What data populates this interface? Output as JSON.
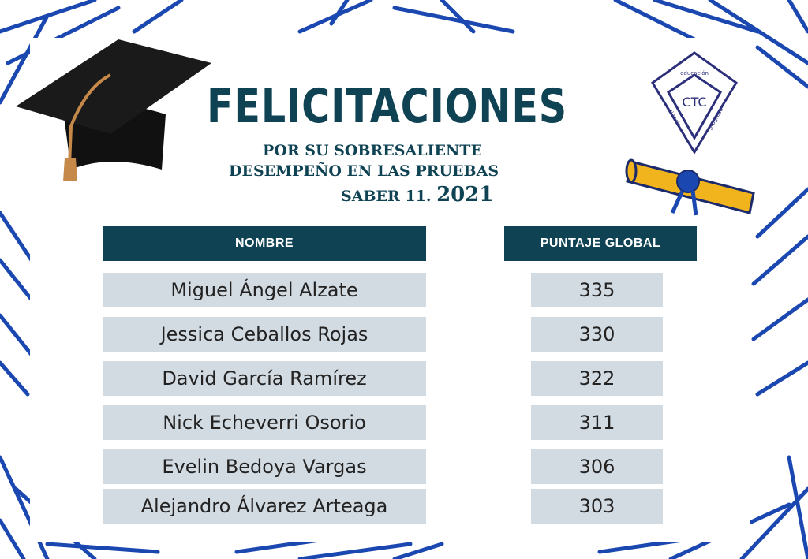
{
  "title": "FELICITACIONES",
  "subtitle": {
    "line1": "POR SU SOBRESALIENTE",
    "line2": "DESEMPEÑO  EN LAS PRUEBAS",
    "line3": "SABER 11.",
    "year": "2021"
  },
  "logo": {
    "initials": "CTC",
    "words": [
      "educación",
      "ciencia",
      "progreso"
    ]
  },
  "table": {
    "headers": [
      "NOMBRE",
      "PUNTAJE GLOBAL"
    ],
    "rows": [
      {
        "name": "Miguel Ángel Alzate",
        "score": "335"
      },
      {
        "name": "Jessica Ceballos Rojas",
        "score": "330"
      },
      {
        "name": "David García Ramírez",
        "score": "322"
      },
      {
        "name": "Nick Echeverri Osorio",
        "score": "311"
      },
      {
        "name": "Evelin Bedoya Vargas",
        "score": "306"
      },
      {
        "name": "Alejandro Álvarez Arteaga",
        "score": "303"
      }
    ]
  },
  "colors": {
    "primary": "#0f4354",
    "row": "#d3dbe2",
    "leaves": "#1b47b0",
    "gold": "#f2b41c"
  }
}
